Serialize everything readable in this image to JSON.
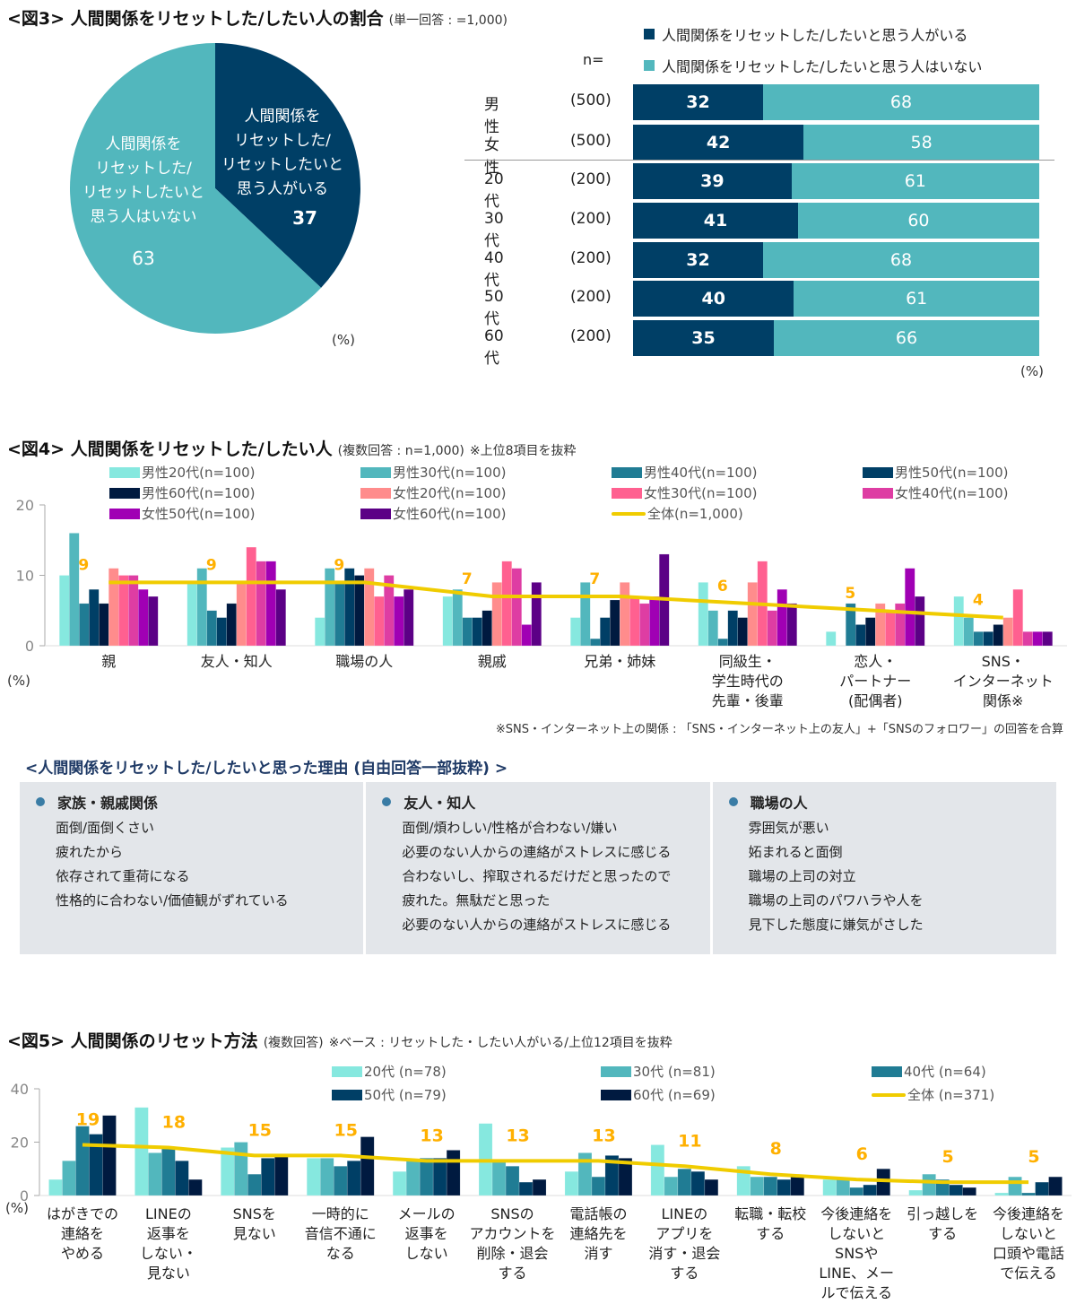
{
  "fig3": {
    "title": "<図3> 人間関係をリセットした/したい人の割合",
    "subtitle": "(単一回答 : =1,000)",
    "pct_label": "(%)",
    "n_label": "n=",
    "colors": {
      "yes": "#003f66",
      "no": "#52b7bd"
    },
    "legend": [
      "人間関係をリセットした/したいと思う人がいる",
      "人間関係をリセットした/したいと思う人はいない"
    ],
    "pie": {
      "slices": [
        {
          "label_lines": [
            "人間関係を",
            "リセットした/",
            "リセットしたいと",
            "思う人がいる"
          ],
          "value": 37
        },
        {
          "label_lines": [
            "人間関係を",
            "リセットした/",
            "リセットしたいと",
            "思う人はいない"
          ],
          "value": 63
        }
      ]
    },
    "bars": [
      {
        "group": "男性",
        "n": "(500)",
        "yes": 32,
        "no": 68
      },
      {
        "group": "女性",
        "n": "(500)",
        "yes": 42,
        "no": 58
      },
      {
        "group": "20代",
        "n": "(200)",
        "yes": 39,
        "no": 61
      },
      {
        "group": "30代",
        "n": "(200)",
        "yes": 41,
        "no": 60
      },
      {
        "group": "40代",
        "n": "(200)",
        "yes": 32,
        "no": 68
      },
      {
        "group": "50代",
        "n": "(200)",
        "yes": 40,
        "no": 61
      },
      {
        "group": "60代",
        "n": "(200)",
        "yes": 35,
        "no": 66
      }
    ]
  },
  "fig4": {
    "title": "<図4> 人間関係をリセットした/したい人",
    "subtitle": "(複数回答 : n=1,000)",
    "note": "※上位8項目を抜粋",
    "footnote": "※SNS・インターネット上の関係 : 「SNS・インターネット上の友人」+「SNSのフォロワー」の回答を合算",
    "pct_label": "(%)"
  },
  "reasons": {
    "title": "<人間関係をリセットした/したいと思った理由 (自由回答一部抜粋) >",
    "columns": [
      {
        "heading": "家族・親戚関係",
        "lines": [
          " 面倒/面倒くさい",
          "疲れたから",
          "依存されて重荷になる",
          "性格的に合わない/価値観がずれている"
        ]
      },
      {
        "heading": "友人・知人",
        "lines": [
          "面倒/煩わしい/性格が合わない/嫌い",
          "必要のない人からの連絡がストレスに感じる",
          "合わないし、搾取されるだけだと思ったので",
          "疲れた。無駄だと思った",
          "必要のない人からの連絡がストレスに感じる"
        ]
      },
      {
        "heading": "職場の人",
        "lines": [
          "雰囲気が悪い",
          "妬まれると面倒",
          "職場の上司の対立",
          "職場の上司のパワハラや人を",
          "見下した態度に嫌気がさした"
        ]
      }
    ]
  },
  "fig5": {
    "title": "<図5> 人間関係のリセット方法",
    "subtitle": "(複数回答)",
    "note": "※ベース : リセットした・したい人がいる/上位12項目を抜粋",
    "pct_label": "(%)"
  },
  "chart_data": [
    {
      "type": "pie",
      "title": "<図3> 人間関係をリセットした/したい人の割合",
      "labels": [
        "人間関係をリセットした/リセットしたいと思う人がいる",
        "人間関係をリセットした/リセットしたいと思う人はいない"
      ],
      "values": [
        37,
        63
      ],
      "unit": "%"
    },
    {
      "type": "bar",
      "orientation": "horizontal-stacked",
      "categories": [
        "男性",
        "女性",
        "20代",
        "30代",
        "40代",
        "50代",
        "60代"
      ],
      "n": [
        "500",
        "500",
        "200",
        "200",
        "200",
        "200",
        "200"
      ],
      "series": [
        {
          "name": "人間関係をリセットした/したいと思う人がいる",
          "values": [
            32,
            42,
            39,
            41,
            32,
            40,
            35
          ]
        },
        {
          "name": "人間関係をリセットした/したいと思う人はいない",
          "values": [
            68,
            58,
            61,
            60,
            68,
            61,
            66
          ]
        }
      ],
      "unit": "%",
      "legend": "top-right"
    },
    {
      "type": "bar",
      "title": "<図4> 人間関係をリセットした/したい人",
      "categories": [
        "親",
        "友人・知人",
        "職場の人",
        "親戚",
        "兄弟・姉妹",
        "同級生・\n学生時代の\n先輩・後輩",
        "恋人・\nパートナー\n(配偶者)",
        "SNS・\nインターネット\n関係※"
      ],
      "series": [
        {
          "name": "男性20代(n=100)",
          "color": "#86e8df",
          "values": [
            10,
            9,
            4,
            7,
            4,
            9,
            2,
            7
          ]
        },
        {
          "name": "男性30代(n=100)",
          "color": "#52b7bd",
          "values": [
            16,
            11,
            11,
            8,
            9,
            5,
            0,
            4
          ]
        },
        {
          "name": "男性40代(n=100)",
          "color": "#207c94",
          "values": [
            6,
            5,
            9,
            4,
            1,
            1,
            6,
            2
          ]
        },
        {
          "name": "男性50代(n=100)",
          "color": "#003f66",
          "values": [
            8,
            4,
            11,
            4,
            4,
            5,
            3,
            2
          ]
        },
        {
          "name": "男性60代(n=100)",
          "color": "#001a40",
          "values": [
            6,
            6,
            10,
            5,
            6.5,
            4,
            4,
            3
          ]
        },
        {
          "name": "女性20代(n=100)",
          "color": "#ff8c8c",
          "values": [
            11,
            9,
            11,
            9,
            9,
            9,
            6,
            4
          ]
        },
        {
          "name": "女性30代(n=100)",
          "color": "#ff6090",
          "values": [
            10,
            14,
            7,
            12,
            7,
            12,
            5,
            8
          ]
        },
        {
          "name": "女性40代(n=100)",
          "color": "#de3da3",
          "values": [
            10,
            12,
            10,
            11,
            6,
            5,
            6,
            2
          ]
        },
        {
          "name": "女性50代(n=100)",
          "color": "#a000b4",
          "values": [
            8,
            12,
            7,
            3,
            7,
            8,
            11,
            2
          ]
        },
        {
          "name": "女性60代(n=100)",
          "color": "#5c0086",
          "values": [
            7,
            8,
            8,
            9,
            13,
            6,
            7,
            2
          ]
        }
      ],
      "line": {
        "name": "全体(n=1,000)",
        "color": "#f0cc00",
        "values": [
          9,
          9,
          9,
          7,
          7,
          6,
          5,
          4
        ],
        "labels": [
          "9",
          "9",
          "9",
          "7",
          "7",
          "6",
          "5",
          "4"
        ],
        "label_color": "#ffb000"
      },
      "ylim": [
        0,
        20
      ],
      "yticks": [
        0,
        10,
        20
      ],
      "ylabel": "(%)",
      "legend": "top"
    },
    {
      "type": "bar",
      "title": "<図5> 人間関係のリセット方法",
      "categories": [
        "はがきでの\n連絡を\nやめる",
        "LINEの\n返事を\nしない・\n見ない",
        "SNSを\n見ない",
        "一時的に\n音信不通に\nなる",
        "メールの\n返事を\nしない",
        "SNSの\nアカウントを\n削除・退会\nする",
        "電話帳の\n連絡先を\n消す",
        "LINEの\nアプリを\n消す・退会\nする",
        "転職・転校\nする",
        "今後連絡を\nしないと\nSNSや\nLINE、メー\nルで伝える",
        "引っ越しを\nする",
        "今後連絡を\nしないと\n口頭や電話\nで伝える"
      ],
      "series": [
        {
          "name": "20代 (n=78)",
          "color": "#86e8df",
          "values": [
            6,
            33,
            18,
            14,
            9,
            27,
            9,
            19,
            11,
            6,
            2,
            1
          ]
        },
        {
          "name": "30代 (n=81)",
          "color": "#52b7bd",
          "values": [
            13,
            16,
            20,
            14,
            13,
            13,
            16,
            7,
            7,
            6,
            8,
            7
          ]
        },
        {
          "name": "40代 (n=64)",
          "color": "#207c94",
          "values": [
            26,
            18,
            8,
            11,
            14,
            11,
            7,
            10,
            7,
            3,
            6,
            1
          ]
        },
        {
          "name": "50代 (n=79)",
          "color": "#003f66",
          "values": [
            23,
            13,
            14,
            13,
            14,
            5,
            15,
            9,
            6,
            4,
            4,
            5
          ]
        },
        {
          "name": "60代 (n=69)",
          "color": "#001a40",
          "values": [
            30,
            6,
            15,
            22,
            17,
            6,
            14,
            6,
            7,
            10,
            3,
            7
          ]
        }
      ],
      "line": {
        "name": "全体 (n=371)",
        "color": "#f0cc00",
        "values": [
          19,
          18,
          15,
          15,
          13,
          13,
          13,
          11,
          8,
          6,
          5,
          5
        ],
        "labels": [
          "19",
          "18",
          "15",
          "15",
          "13",
          "13",
          "13",
          "11",
          "8",
          "6",
          "5",
          "5"
        ],
        "label_color": "#ffb000"
      },
      "ylim": [
        0,
        40
      ],
      "yticks": [
        0,
        20,
        40
      ],
      "ylabel": "(%)",
      "legend": "top"
    }
  ]
}
